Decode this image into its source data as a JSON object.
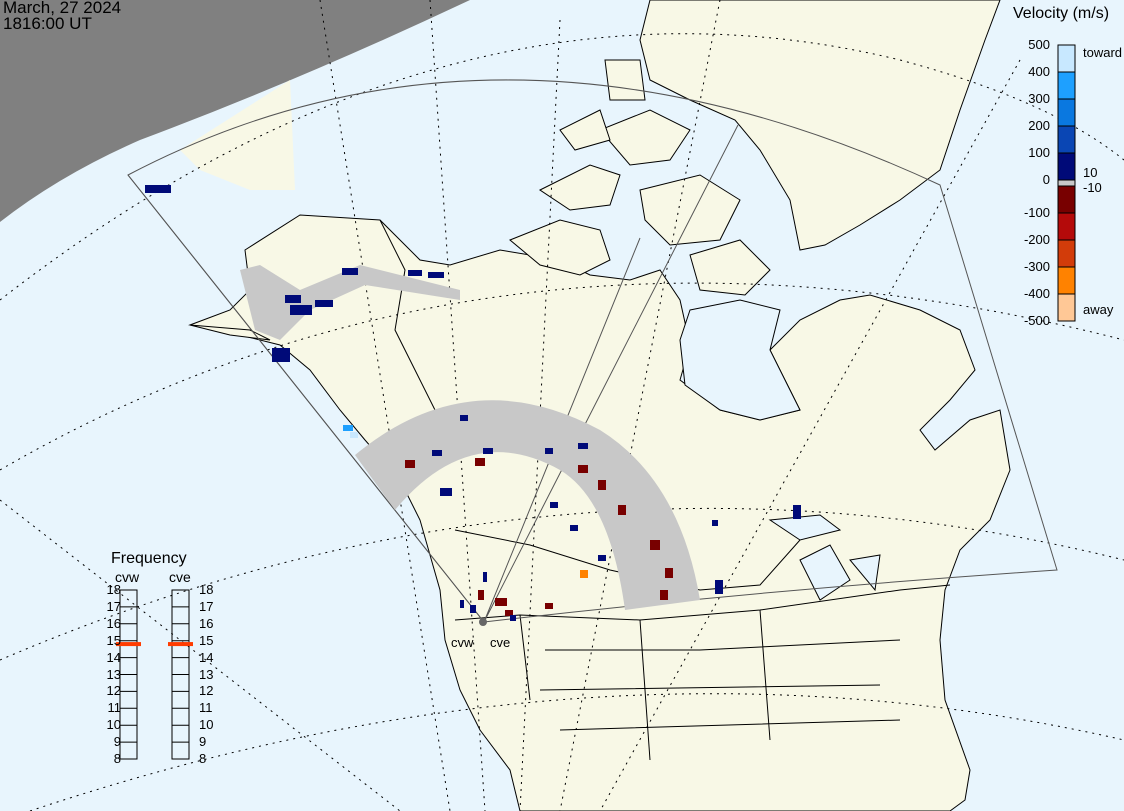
{
  "header": {
    "date": "March, 27 2024",
    "time": "1816:00 UT"
  },
  "velocity_scale": {
    "title": "Velocity (m/s)",
    "ticks": [
      "500",
      "400",
      "300",
      "200",
      "100",
      "0",
      "-100",
      "-200",
      "-300",
      "-400",
      "-500"
    ],
    "toward_label": "toward",
    "away_label": "away",
    "threshold_pos": "10",
    "threshold_neg": "-10",
    "colors": [
      "#c8e8ff",
      "#1ea0ff",
      "#0a78e0",
      "#0a46b4",
      "#000a78",
      "#c8c8c8",
      "#780000",
      "#b40a0a",
      "#d23c0a",
      "#ff8200",
      "#ffc896"
    ],
    "ground_scatter_color": "#c8c8c8"
  },
  "frequency": {
    "title": "Frequency",
    "unit_range": [
      8,
      18
    ],
    "ticks": [
      "18",
      "17",
      "16",
      "15",
      "14",
      "13",
      "12",
      "11",
      "10",
      "9",
      "8"
    ],
    "radars": [
      {
        "name": "cvw",
        "frequency_mhz": 14.8
      },
      {
        "name": "cve",
        "frequency_mhz": 14.8
      }
    ],
    "marker_color": "#ff3c00"
  },
  "map": {
    "radar_labels": [
      "cvw",
      "cve"
    ],
    "ocean_color": "#e8f5fd",
    "land_color": "#f8f8e6",
    "night_color": "#808080"
  }
}
